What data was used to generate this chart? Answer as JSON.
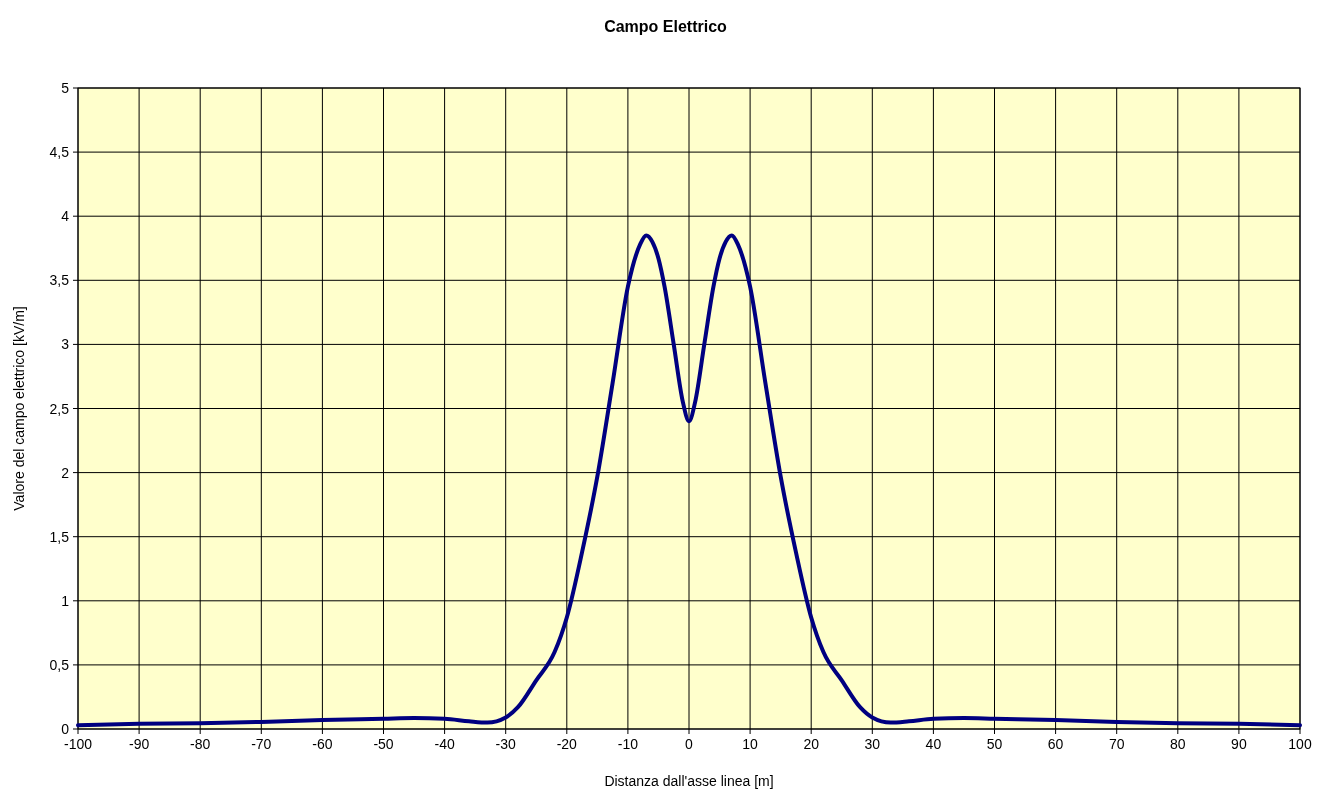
{
  "chart_data": {
    "type": "line",
    "title": "Campo Elettrico",
    "xlabel": "Distanza dall'asse linea [m]",
    "ylabel": "Valore del campo elettrico [kV/m]",
    "x": [
      -100,
      -90,
      -80,
      -70,
      -60,
      -50,
      -45,
      -40,
      -36,
      -33,
      -30,
      -28,
      -25,
      -22,
      -20,
      -17.5,
      -15,
      -12.5,
      -10,
      -8,
      -7,
      -6,
      -5,
      -4,
      -2.5,
      -1,
      0,
      1,
      2.5,
      4,
      5,
      6,
      7,
      8,
      10,
      12.5,
      15,
      17.5,
      20,
      22,
      25,
      28,
      30,
      33,
      36,
      40,
      45,
      50,
      60,
      70,
      80,
      90,
      100
    ],
    "series": [
      {
        "color": "#000080",
        "values": [
          0.03,
          0.04,
          0.045,
          0.055,
          0.07,
          0.08,
          0.085,
          0.08,
          0.06,
          0.05,
          0.09,
          0.17,
          0.38,
          0.6,
          0.87,
          1.38,
          1.97,
          2.7,
          3.45,
          3.78,
          3.85,
          3.8,
          3.67,
          3.45,
          3.0,
          2.55,
          2.4,
          2.55,
          3.0,
          3.45,
          3.67,
          3.8,
          3.85,
          3.78,
          3.45,
          2.7,
          1.97,
          1.38,
          0.87,
          0.6,
          0.38,
          0.17,
          0.09,
          0.05,
          0.06,
          0.08,
          0.085,
          0.08,
          0.07,
          0.055,
          0.045,
          0.04,
          0.03
        ]
      }
    ],
    "xlim": [
      -100,
      100
    ],
    "xticks": [
      -100,
      -90,
      -80,
      -70,
      -60,
      -50,
      -40,
      -30,
      -20,
      -10,
      0,
      10,
      20,
      30,
      40,
      50,
      60,
      70,
      80,
      90,
      100
    ],
    "ylim": [
      0,
      5
    ],
    "yticks": [
      0,
      {
        "value": 0.5,
        "label": "0,5"
      },
      1,
      {
        "value": 1.5,
        "label": "1,5"
      },
      2,
      {
        "value": 2.5,
        "label": "2,5"
      },
      3,
      {
        "value": 3.5,
        "label": "3,5"
      },
      4,
      {
        "value": 4.5,
        "label": "4,5"
      },
      5
    ],
    "grid": true,
    "marker": "none",
    "line_style": "solid"
  }
}
